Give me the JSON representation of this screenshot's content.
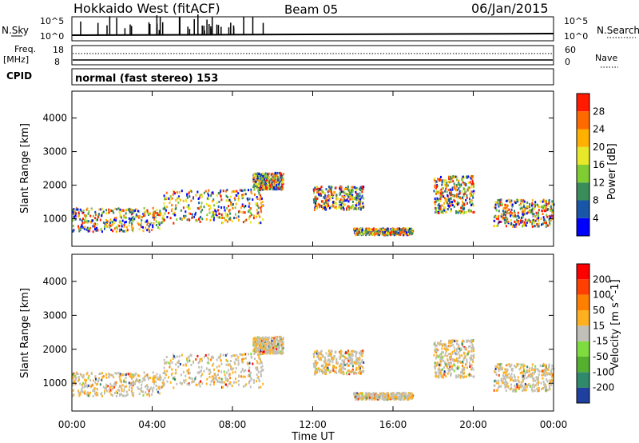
{
  "header": {
    "station": "Hokkaido West (fitACF)",
    "beam": "Beam 05",
    "date": "06/Jan/2015"
  },
  "noise_panel": {
    "left_label": "N.Sky",
    "right_label": "N.Search",
    "top_tick": "10^5",
    "bottom_tick": "10^0"
  },
  "freq_panel": {
    "left_label_top": "Freq.",
    "left_label_unit": "[MHz]",
    "right_label": "Nave",
    "left_ticks": [
      "18",
      "8"
    ],
    "right_ticks": [
      "60",
      "0"
    ]
  },
  "cpid": {
    "label": "CPID",
    "text": "normal (fast stereo) 153"
  },
  "chart_data": [
    {
      "type": "heatmap",
      "title": "",
      "xlabel": "",
      "ylabel": "Slant Range [km]",
      "colorbar_label": "Power [dB]",
      "colorbar_ticks": [
        "28",
        "24",
        "20",
        "16",
        "12",
        "8",
        "4"
      ],
      "colorbar_colors": [
        "#0000ff",
        "#1a56a8",
        "#3a8c5a",
        "#7fcc33",
        "#e8e82a",
        "#ffb000",
        "#ff6a00",
        "#ff1a00"
      ],
      "yticks": [
        "4000",
        "3000",
        "2000",
        "1000"
      ],
      "ylim": [
        180,
        4800
      ],
      "xlim": [
        "00:00",
        "24:00"
      ],
      "grid": false
    },
    {
      "type": "heatmap",
      "title": "",
      "xlabel": "Time UT",
      "ylabel": "Slant Range [km]",
      "colorbar_label": "Velocity [m s^-1]",
      "colorbar_ticks": [
        "200",
        "100",
        "50",
        "15",
        "-15",
        "-50",
        "-100",
        "-200"
      ],
      "colorbar_colors": [
        "#2040a0",
        "#2e8a6a",
        "#55b030",
        "#7fdc40",
        "#c0c0b8",
        "#ffb020",
        "#ff8000",
        "#ff4000",
        "#ff0000"
      ],
      "yticks": [
        "4000",
        "3000",
        "2000",
        "1000"
      ],
      "ylim": [
        180,
        4800
      ],
      "xticks": [
        "00:00",
        "04:00",
        "08:00",
        "12:00",
        "16:00",
        "20:00",
        "00:00"
      ],
      "xlim": [
        "00:00",
        "24:00"
      ],
      "grid": false
    }
  ]
}
